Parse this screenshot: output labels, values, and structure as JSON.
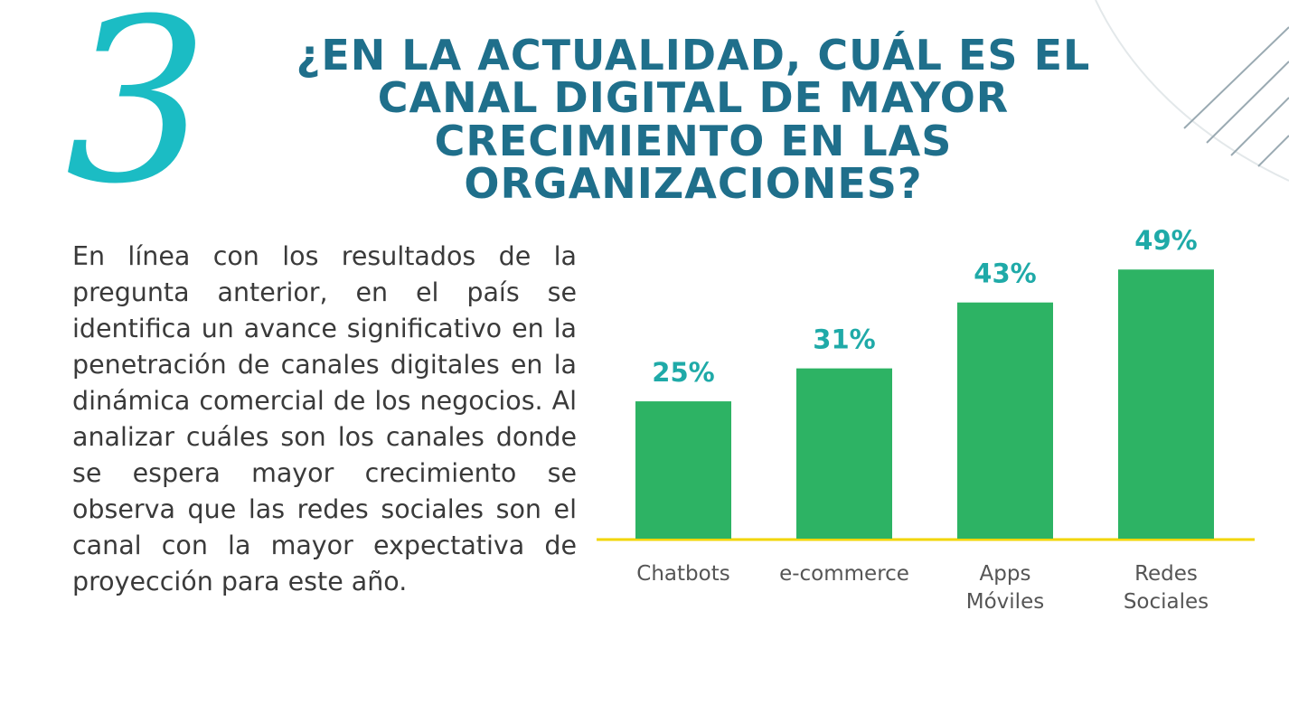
{
  "slide": {
    "number": "3",
    "title": "¿EN LA ACTUALIDAD, CUÁL ES EL CANAL DIGITAL DE MAYOR CRECIMIENTO EN LAS ORGANIZACIONES?",
    "body": "En línea con los resultados de la pregunta anterior, en el país se identifica un avance significativo en la penetración de canales digitales en la dinámica comercial de los negocios. Al analizar cuáles son los canales donde se espera mayor crecimiento se observa que las redes sociales son el canal con la mayor expectativa de proyección para este año."
  },
  "colors": {
    "title": "#1f6f8b",
    "number": "#1bbcc4",
    "bar": "#2db364",
    "value_label": "#1faaa8",
    "axis_line": "#f2d600",
    "category_label": "#555555",
    "decor_lines": "#9aaab2"
  },
  "chart_data": {
    "type": "bar",
    "categories": [
      [
        "Chatbots"
      ],
      [
        "e-commerce"
      ],
      [
        "Apps",
        "Móviles"
      ],
      [
        "Redes",
        "Sociales"
      ]
    ],
    "values": [
      25,
      31,
      43,
      49
    ],
    "value_labels": [
      "25%",
      "31%",
      "43%",
      "49%"
    ],
    "unit": "%",
    "ylim": [
      0,
      52
    ],
    "grid": false,
    "legend": "none"
  }
}
